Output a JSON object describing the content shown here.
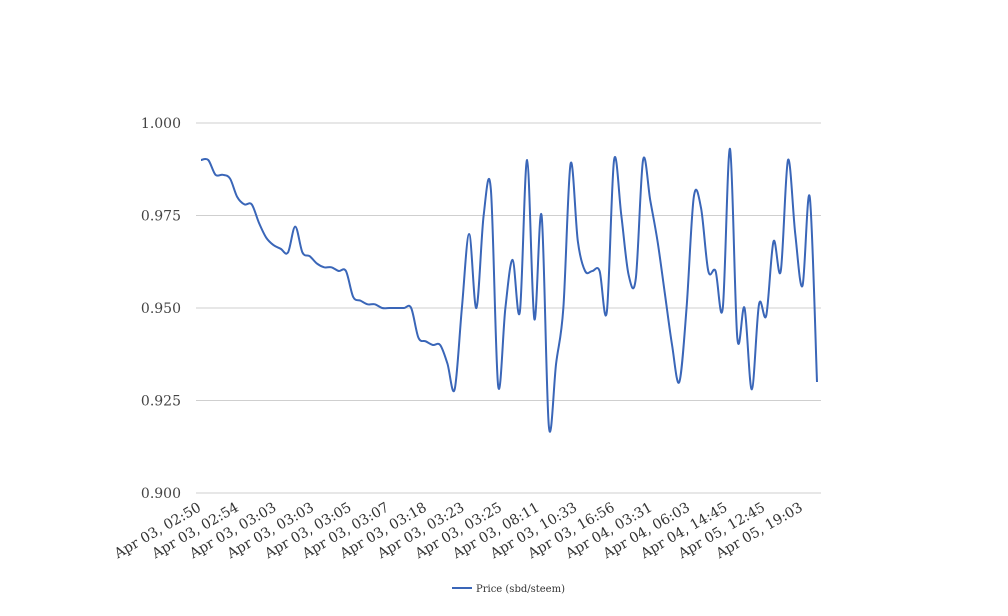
{
  "chart_data": {
    "type": "line",
    "ylim": [
      0.9,
      1.0
    ],
    "grid": true,
    "legend_position": "bottom",
    "y_ticks": [
      "0.900",
      "0.925",
      "0.950",
      "0.975",
      "1.000"
    ],
    "x_tick_labels": [
      "Apr 03, 02:50",
      "Apr 03, 02:54",
      "Apr 03, 03:03",
      "Apr 03, 03:03",
      "Apr 03, 03:05",
      "Apr 03, 03:07",
      "Apr 03, 03:18",
      "Apr 03, 03:23",
      "Apr 03, 03:25",
      "Apr 03, 08:11",
      "Apr 03, 10:33",
      "Apr 03, 16:56",
      "Apr 04, 03:31",
      "Apr 04, 06:03",
      "Apr 04, 14:45",
      "Apr 05, 12:45",
      "Apr 05, 19:03"
    ],
    "series": [
      {
        "name": "Price (sbd/steem)",
        "color": "#3a66b8",
        "values": [
          0.99,
          0.99,
          0.986,
          0.986,
          0.985,
          0.98,
          0.978,
          0.978,
          0.973,
          0.969,
          0.967,
          0.966,
          0.965,
          0.972,
          0.965,
          0.964,
          0.962,
          0.961,
          0.961,
          0.96,
          0.96,
          0.953,
          0.952,
          0.951,
          0.951,
          0.95,
          0.95,
          0.95,
          0.95,
          0.95,
          0.942,
          0.941,
          0.94,
          0.94,
          0.935,
          0.928,
          0.95,
          0.97,
          0.95,
          0.975,
          0.982,
          0.929,
          0.95,
          0.963,
          0.949,
          0.99,
          0.947,
          0.975,
          0.918,
          0.935,
          0.95,
          0.989,
          0.968,
          0.96,
          0.96,
          0.96,
          0.949,
          0.99,
          0.975,
          0.959,
          0.958,
          0.99,
          0.979,
          0.968,
          0.954,
          0.94,
          0.93,
          0.95,
          0.98,
          0.977,
          0.96,
          0.96,
          0.95,
          0.993,
          0.942,
          0.95,
          0.928,
          0.951,
          0.948,
          0.968,
          0.96,
          0.99,
          0.97,
          0.956,
          0.98,
          0.93
        ]
      }
    ]
  }
}
